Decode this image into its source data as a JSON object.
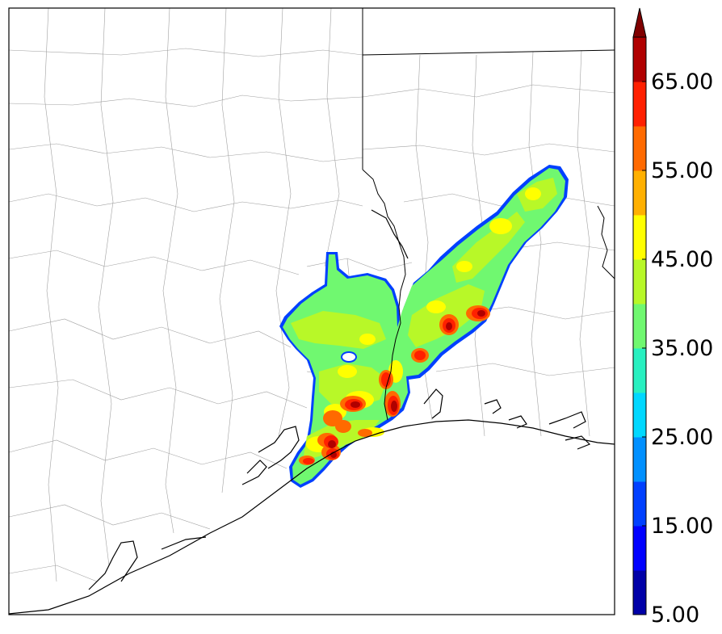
{
  "colorbar": {
    "levels": [
      5,
      10,
      15,
      20,
      25,
      30,
      35,
      40,
      45,
      50,
      55,
      60,
      65,
      70
    ],
    "colors": [
      "#0000a8",
      "#0000ff",
      "#0040ff",
      "#0090ff",
      "#00d8ff",
      "#28f0c0",
      "#70f870",
      "#b8f828",
      "#ffff00",
      "#ffb000",
      "#ff6a00",
      "#ff2000",
      "#b00000"
    ],
    "extend_color": "#800000",
    "tick_labels": [
      {
        "value": 5,
        "text": "5.00"
      },
      {
        "value": 15,
        "text": "15.00"
      },
      {
        "value": 25,
        "text": "25.00"
      },
      {
        "value": 35,
        "text": "35.00"
      },
      {
        "value": 45,
        "text": "45.00"
      },
      {
        "value": 55,
        "text": "55.00"
      },
      {
        "value": 65,
        "text": "65.00"
      }
    ]
  },
  "map": {
    "field_colors": {
      "low": "#0040ff",
      "base": "#70f870",
      "mid": "#b8f828",
      "high": "#ffff00",
      "heavy": "#ff6a00",
      "extreme": "#ff2000",
      "peak": "#b00000"
    },
    "line_colors": {
      "county": "#9a9a9a",
      "state": "#000000",
      "coast": "#000000"
    }
  }
}
